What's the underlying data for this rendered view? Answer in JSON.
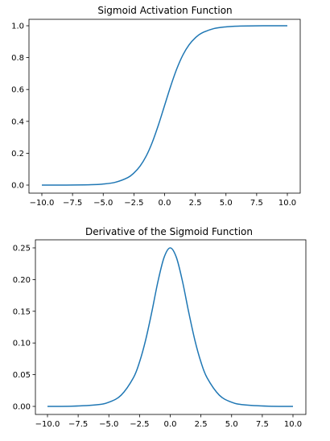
{
  "chart_data": [
    {
      "type": "line",
      "title": "Sigmoid Activation Function",
      "xlabel": "",
      "ylabel": "",
      "xlim": [
        -10,
        10
      ],
      "ylim": [
        0,
        1
      ],
      "xticks": [
        -10.0,
        -7.5,
        -5.0,
        -2.5,
        0.0,
        2.5,
        5.0,
        7.5,
        10.0
      ],
      "xtick_labels": [
        "−10.0",
        "−7.5",
        "−5.0",
        "−2.5",
        "0.0",
        "2.5",
        "5.0",
        "7.5",
        "10.0"
      ],
      "yticks": [
        0.0,
        0.2,
        0.4,
        0.6,
        0.8,
        1.0
      ],
      "ytick_labels": [
        "0.0",
        "0.2",
        "0.4",
        "0.6",
        "0.8",
        "1.0"
      ],
      "grid": false,
      "color": "#1f77b4",
      "series": [
        {
          "x": [
            -10,
            -8,
            -6,
            -5,
            -4,
            -3,
            -2.5,
            -2,
            -1.5,
            -1,
            -0.5,
            0,
            0.5,
            1,
            1.5,
            2,
            2.5,
            3,
            4,
            5,
            6,
            8,
            10
          ],
          "values": [
            5e-05,
            0.0003,
            0.0025,
            0.0067,
            0.018,
            0.047,
            0.076,
            0.119,
            0.182,
            0.269,
            0.378,
            0.5,
            0.622,
            0.731,
            0.818,
            0.881,
            0.924,
            0.953,
            0.982,
            0.9933,
            0.9975,
            0.9997,
            0.99995
          ]
        }
      ]
    },
    {
      "type": "line",
      "title": "Derivative of the Sigmoid Function",
      "xlabel": "",
      "ylabel": "",
      "xlim": [
        -10,
        10
      ],
      "ylim": [
        0,
        0.25
      ],
      "xticks": [
        -10.0,
        -7.5,
        -5.0,
        -2.5,
        0.0,
        2.5,
        5.0,
        7.5,
        10.0
      ],
      "xtick_labels": [
        "−10.0",
        "−7.5",
        "−5.0",
        "−2.5",
        "0.0",
        "2.5",
        "5.0",
        "7.5",
        "10.0"
      ],
      "yticks": [
        0.0,
        0.05,
        0.1,
        0.15,
        0.2,
        0.25
      ],
      "ytick_labels": [
        "0.00",
        "0.05",
        "0.10",
        "0.15",
        "0.20",
        "0.25"
      ],
      "grid": false,
      "color": "#1f77b4",
      "series": [
        {
          "x": [
            -10,
            -8,
            -6,
            -5,
            -4,
            -3,
            -2.5,
            -2,
            -1.5,
            -1,
            -0.5,
            0,
            0.5,
            1,
            1.5,
            2,
            2.5,
            3,
            4,
            5,
            6,
            8,
            10
          ],
          "values": [
            5e-05,
            0.0003,
            0.0025,
            0.0066,
            0.0177,
            0.0452,
            0.0701,
            0.105,
            0.149,
            0.197,
            0.235,
            0.25,
            0.235,
            0.197,
            0.149,
            0.105,
            0.0701,
            0.0452,
            0.0177,
            0.0066,
            0.0025,
            0.0003,
            5e-05
          ]
        }
      ]
    }
  ]
}
